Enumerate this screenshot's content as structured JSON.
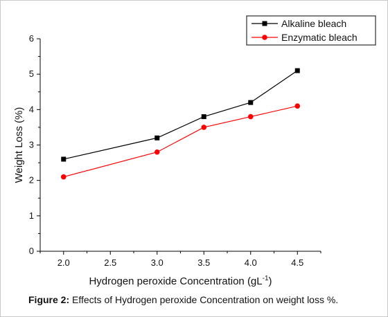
{
  "caption": {
    "label": "Figure 2:",
    "text": " Effects of Hydrogen peroxide Concentration on weight loss %."
  },
  "chart_data": {
    "type": "line",
    "xlabel": "Hydrogen peroxide Concentration (gL",
    "xlabel_sup": "-1",
    "xlabel_end": ")",
    "ylabel": "Weight Loss (%)",
    "xlim": [
      1.75,
      4.75
    ],
    "ylim": [
      0,
      6
    ],
    "x_ticks": [
      "2.0",
      "2.5",
      "3.0",
      "3.5",
      "4.0",
      "4.5"
    ],
    "y_ticks": [
      "0",
      "1",
      "2",
      "3",
      "4",
      "5",
      "6"
    ],
    "x": [
      2.0,
      3.0,
      3.5,
      4.0,
      4.5
    ],
    "series": [
      {
        "name": "Alkaline bleach",
        "values": [
          2.6,
          3.2,
          3.8,
          4.2,
          5.1
        ],
        "color": "#000000",
        "marker": "square"
      },
      {
        "name": "Enzymatic bleach",
        "values": [
          2.1,
          2.8,
          3.5,
          3.8,
          4.1
        ],
        "color": "#ff0000",
        "marker": "circle"
      }
    ],
    "legend_position": "top-right",
    "grid": false
  }
}
